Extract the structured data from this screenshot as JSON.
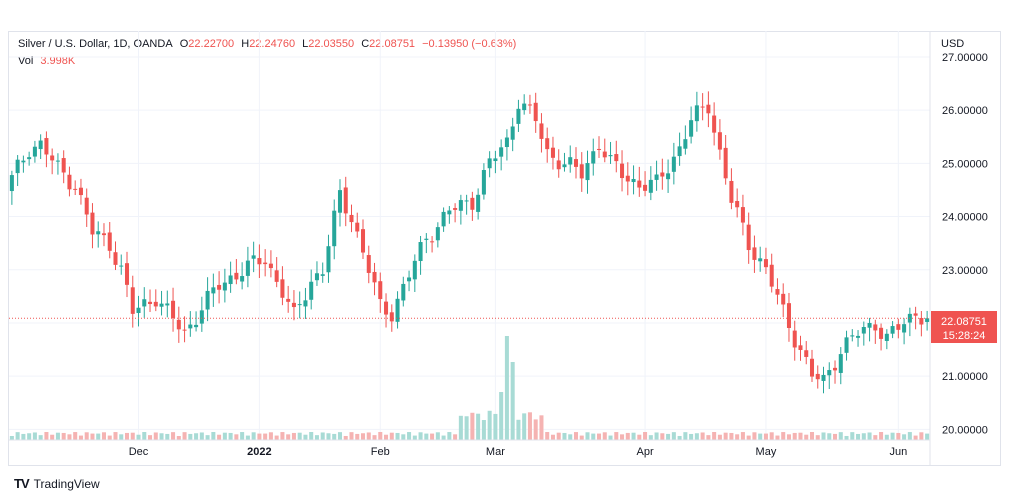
{
  "header": {
    "symbol": "Silver / U.S. Dollar, 1D, OANDA",
    "o_label": "O",
    "o_value": "22.22700",
    "h_label": "H",
    "h_value": "22.24760",
    "l_label": "L",
    "l_value": "22.03550",
    "c_label": "C",
    "c_value": "22.08751",
    "change": "−0.13950 (−0.63%)",
    "vol_label": "Vol",
    "vol_value": "3.998K"
  },
  "currency": "USD",
  "price_tag": {
    "price": "22.08751",
    "countdown": "15:28:24"
  },
  "brand": {
    "name": "TradingView",
    "logo": "TV"
  },
  "colors": {
    "up": "#26a69a",
    "down": "#ef5350",
    "up_vol": "#a8dbd5",
    "down_vol": "#f5b3b2",
    "grid": "#f0f3fa",
    "axis_text": "#131722"
  },
  "chart_data": {
    "type": "candlestick",
    "title": "Silver / U.S. Dollar, 1D, OANDA",
    "ylim": [
      19.8,
      27.3
    ],
    "y_ticks": [
      "27.00000",
      "26.00000",
      "25.00000",
      "24.00000",
      "23.00000",
      "22.00000",
      "21.00000",
      "20.00000"
    ],
    "x_ticks": [
      {
        "label": "Dec",
        "index": 22
      },
      {
        "label": "2022",
        "index": 43
      },
      {
        "label": "Feb",
        "index": 64
      },
      {
        "label": "Mar",
        "index": 84
      },
      {
        "label": "Apr",
        "index": 110
      },
      {
        "label": "May",
        "index": 131
      },
      {
        "label": "Jun",
        "index": 154
      }
    ],
    "last_price": 22.08751,
    "anchors": [
      [
        0,
        24.7
      ],
      [
        3,
        25.3
      ],
      [
        5,
        25.35
      ],
      [
        8,
        24.9
      ],
      [
        11,
        24.6
      ],
      [
        14,
        23.7
      ],
      [
        17,
        23.5
      ],
      [
        19,
        23.0
      ],
      [
        21,
        22.2
      ],
      [
        25,
        22.5
      ],
      [
        27,
        22.2
      ],
      [
        30,
        21.8
      ],
      [
        33,
        22.3
      ],
      [
        36,
        22.7
      ],
      [
        40,
        23.0
      ],
      [
        44,
        23.2
      ],
      [
        47,
        22.6
      ],
      [
        49,
        22.1
      ],
      [
        52,
        22.8
      ],
      [
        54,
        23.0
      ],
      [
        57,
        24.4
      ],
      [
        59,
        24.0
      ],
      [
        62,
        23.0
      ],
      [
        64,
        22.3
      ],
      [
        66,
        22.2
      ],
      [
        69,
        22.9
      ],
      [
        72,
        23.6
      ],
      [
        76,
        24.1
      ],
      [
        80,
        24.3
      ],
      [
        83,
        25.0
      ],
      [
        86,
        25.4
      ],
      [
        88,
        26.2
      ],
      [
        91,
        25.8
      ],
      [
        93,
        25.2
      ],
      [
        96,
        25.0
      ],
      [
        99,
        24.8
      ],
      [
        102,
        25.4
      ],
      [
        104,
        25.0
      ],
      [
        106,
        24.8
      ],
      [
        109,
        24.6
      ],
      [
        112,
        24.6
      ],
      [
        116,
        25.3
      ],
      [
        118,
        25.8
      ],
      [
        121,
        26.1
      ],
      [
        123,
        25.2
      ],
      [
        125,
        24.3
      ],
      [
        128,
        23.5
      ],
      [
        131,
        23.0
      ],
      [
        134,
        22.2
      ],
      [
        137,
        21.5
      ],
      [
        139,
        21.0
      ],
      [
        141,
        20.9
      ],
      [
        144,
        21.5
      ],
      [
        147,
        21.8
      ],
      [
        150,
        22.0
      ],
      [
        152,
        21.7
      ],
      [
        154,
        21.9
      ],
      [
        157,
        22.2
      ],
      [
        159,
        22.09
      ]
    ]
  }
}
